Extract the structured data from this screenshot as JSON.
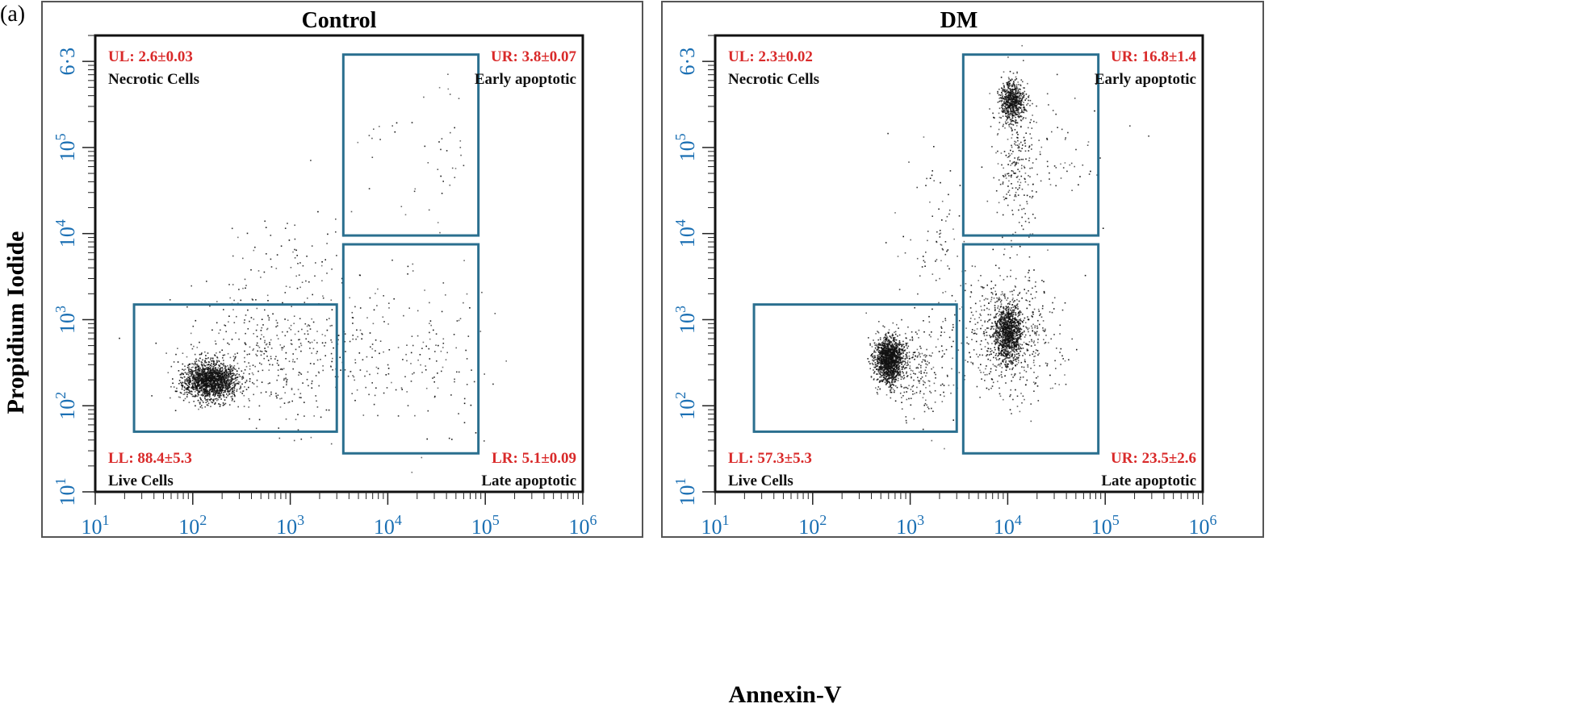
{
  "figure": {
    "panel_label": "(a)",
    "ylabel": "Propidium Iodide",
    "xlabel": "Annexin-V"
  },
  "colors": {
    "axis": "#1a6fb3",
    "quadrant_label": "#d92a2a",
    "gate": "#2a6f8f",
    "frame": "#555555",
    "dots": "#111111"
  },
  "chart_data": [
    {
      "type": "scatter",
      "title": "Control",
      "xscale": "log",
      "yscale": "log",
      "xlim": [
        10,
        1000000
      ],
      "ylim": [
        10,
        2000000
      ],
      "x_ticks": [
        "10",
        "10",
        "10",
        "10",
        "10",
        "10"
      ],
      "x_tick_exps": [
        "1",
        "2",
        "3",
        "4",
        "5",
        "6"
      ],
      "y_ticks": [
        "10",
        "10",
        "10",
        "10",
        "10",
        "6·3"
      ],
      "y_tick_exps": [
        "1",
        "2",
        "3",
        "4",
        "5",
        ""
      ],
      "quadrants": [
        {
          "id": "UL",
          "label": "UL: 2.6±0.03",
          "desc": "Necrotic Cells"
        },
        {
          "id": "UR",
          "label": "UR: 3.8±0.07",
          "desc": "Early apoptotic"
        },
        {
          "id": "LL",
          "label": "LL: 88.4±5.3",
          "desc": "Live Cells"
        },
        {
          "id": "LR",
          "label": "LR: 5.1±0.09",
          "desc": "Late apoptotic"
        }
      ],
      "gates": [
        {
          "name": "live",
          "x": [
            25,
            3000
          ],
          "y": [
            50,
            1500
          ]
        },
        {
          "name": "early",
          "x": [
            3500,
            85000
          ],
          "y": [
            9500,
            1200000
          ]
        },
        {
          "name": "late",
          "x": [
            3500,
            85000
          ],
          "y": [
            28,
            7500
          ]
        }
      ],
      "clusters": [
        {
          "cx": 150,
          "cy": 200,
          "sx": 0.14,
          "sy": 0.11,
          "n": 1700
        },
        {
          "cx": 700,
          "cy": 400,
          "sx": 0.5,
          "sy": 0.4,
          "n": 420
        },
        {
          "cx": 9000,
          "cy": 400,
          "sx": 0.3,
          "sy": 0.45,
          "n": 90
        },
        {
          "cx": 35000,
          "cy": 400,
          "sx": 0.25,
          "sy": 0.45,
          "n": 80
        },
        {
          "cx": 8000,
          "cy": 60000,
          "sx": 0.25,
          "sy": 0.5,
          "n": 20
        },
        {
          "cx": 35000,
          "cy": 60000,
          "sx": 0.15,
          "sy": 0.55,
          "n": 30
        },
        {
          "cx": 1000,
          "cy": 5000,
          "sx": 0.35,
          "sy": 0.2,
          "n": 60
        }
      ]
    },
    {
      "type": "scatter",
      "title": "DM",
      "xscale": "log",
      "yscale": "log",
      "xlim": [
        10,
        1000000
      ],
      "ylim": [
        10,
        2000000
      ],
      "x_ticks": [
        "10",
        "10",
        "10",
        "10",
        "10",
        "10"
      ],
      "x_tick_exps": [
        "1",
        "2",
        "3",
        "4",
        "5",
        "6"
      ],
      "y_ticks": [
        "10",
        "10",
        "10",
        "10",
        "10",
        "6·3"
      ],
      "y_tick_exps": [
        "1",
        "2",
        "3",
        "4",
        "5",
        ""
      ],
      "quadrants": [
        {
          "id": "UL",
          "label": "UL: 2.3±0.02",
          "desc": "Necrotic Cells"
        },
        {
          "id": "UR",
          "label": "UR: 16.8±1.4",
          "desc": "Early apoptotic"
        },
        {
          "id": "LL",
          "label": "LL: 57.3±5.3",
          "desc": "Live Cells"
        },
        {
          "id": "LR",
          "label": "UR: 23.5±2.6",
          "desc": "Late apoptotic"
        }
      ],
      "gates": [
        {
          "name": "live",
          "x": [
            25,
            3000
          ],
          "y": [
            50,
            1500
          ]
        },
        {
          "name": "early",
          "x": [
            3500,
            85000
          ],
          "y": [
            9500,
            1200000
          ]
        },
        {
          "name": "late",
          "x": [
            3500,
            85000
          ],
          "y": [
            28,
            7500
          ]
        }
      ],
      "clusters": [
        {
          "cx": 600,
          "cy": 350,
          "sx": 0.07,
          "sy": 0.13,
          "n": 1400
        },
        {
          "cx": 1100,
          "cy": 300,
          "sx": 0.2,
          "sy": 0.3,
          "n": 250
        },
        {
          "cx": 10000,
          "cy": 700,
          "sx": 0.07,
          "sy": 0.16,
          "n": 1000
        },
        {
          "cx": 10000,
          "cy": 700,
          "sx": 0.25,
          "sy": 0.35,
          "n": 600
        },
        {
          "cx": 11000,
          "cy": 350000,
          "sx": 0.06,
          "sy": 0.12,
          "n": 650
        },
        {
          "cx": 12000,
          "cy": 60000,
          "sx": 0.1,
          "sy": 0.5,
          "n": 250
        },
        {
          "cx": 30000,
          "cy": 90000,
          "sx": 0.25,
          "sy": 0.4,
          "n": 60
        },
        {
          "cx": 1800,
          "cy": 10000,
          "sx": 0.2,
          "sy": 0.5,
          "n": 80
        }
      ]
    }
  ]
}
